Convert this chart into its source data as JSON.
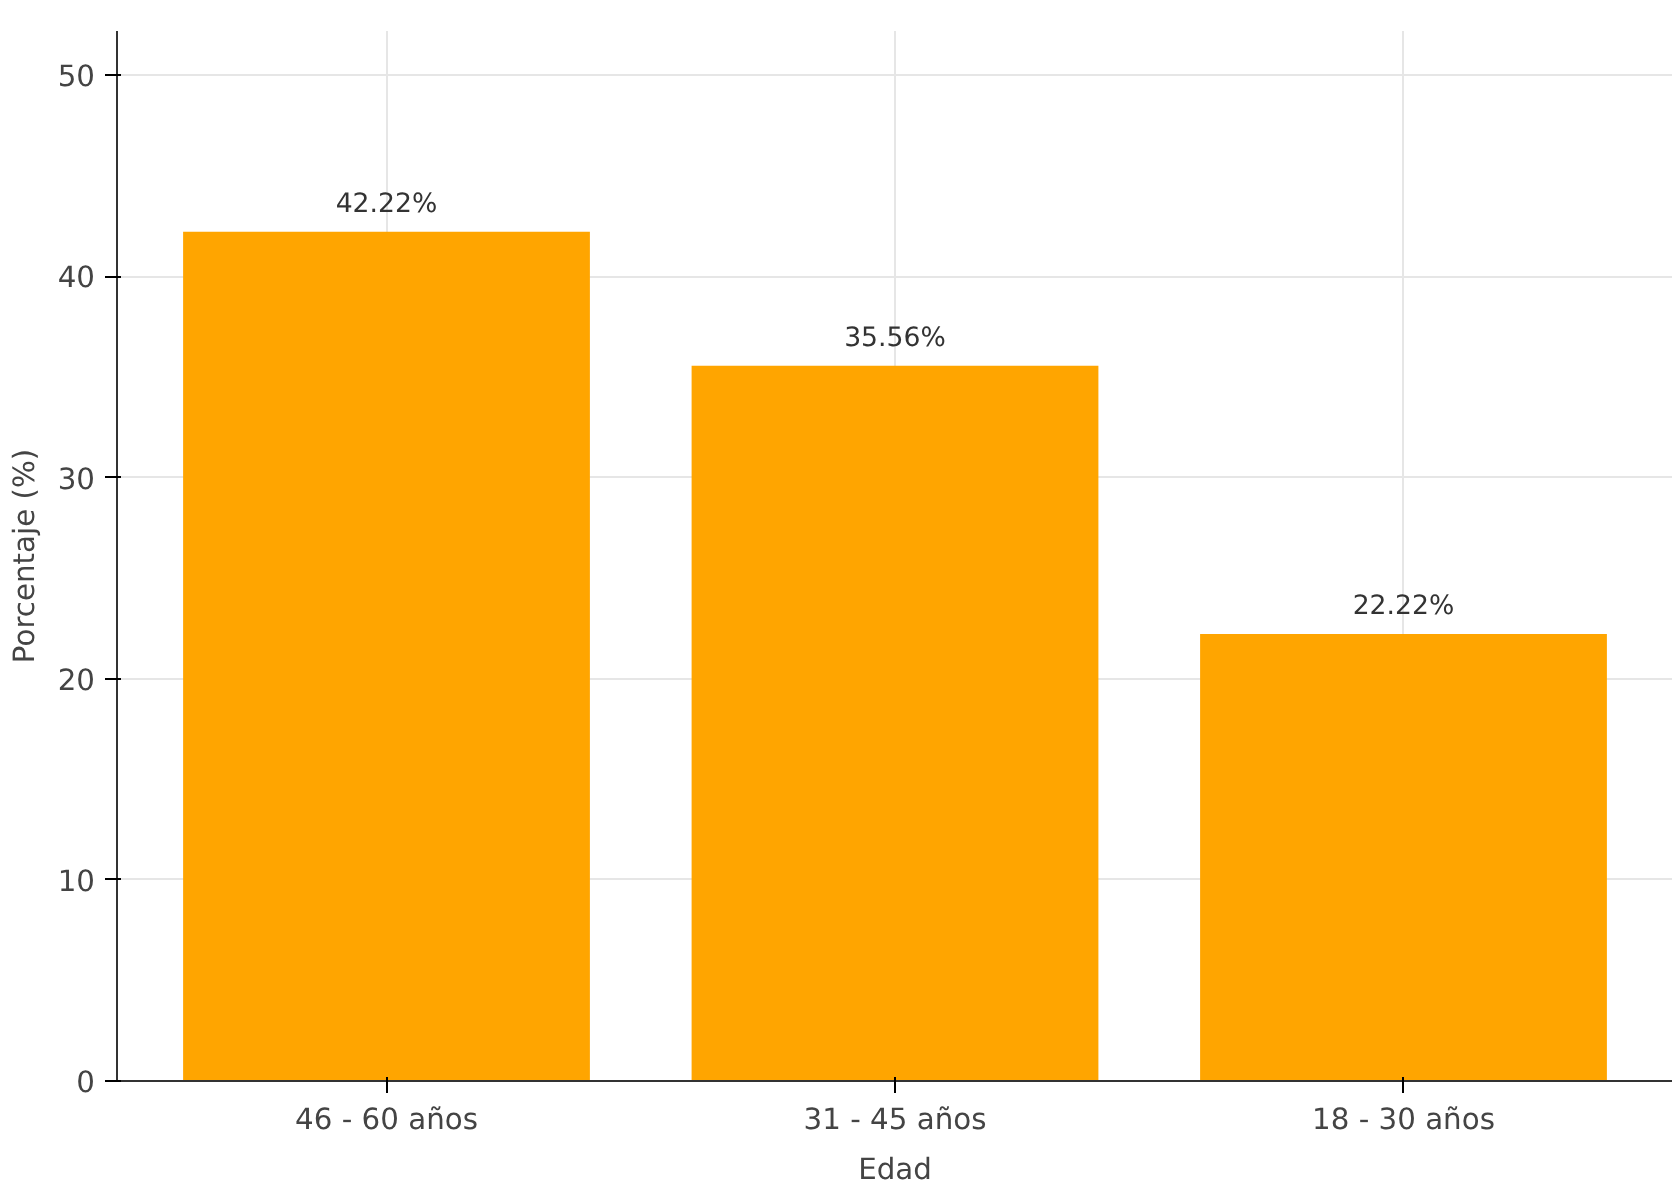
{
  "chart_data": {
    "type": "bar",
    "xlabel": "Edad",
    "ylabel": "Porcentaje (%)",
    "categories": [
      "46 - 60 años",
      "31 - 45 años",
      "18 - 30 años"
    ],
    "values": [
      42.22,
      35.56,
      22.22
    ],
    "value_labels": [
      "42.22%",
      "35.56%",
      "22.22%"
    ],
    "color": "#ffa500",
    "ylim": [
      0,
      52.2
    ],
    "yticks": [
      0,
      10,
      20,
      30,
      40,
      50
    ],
    "grid": true
  }
}
